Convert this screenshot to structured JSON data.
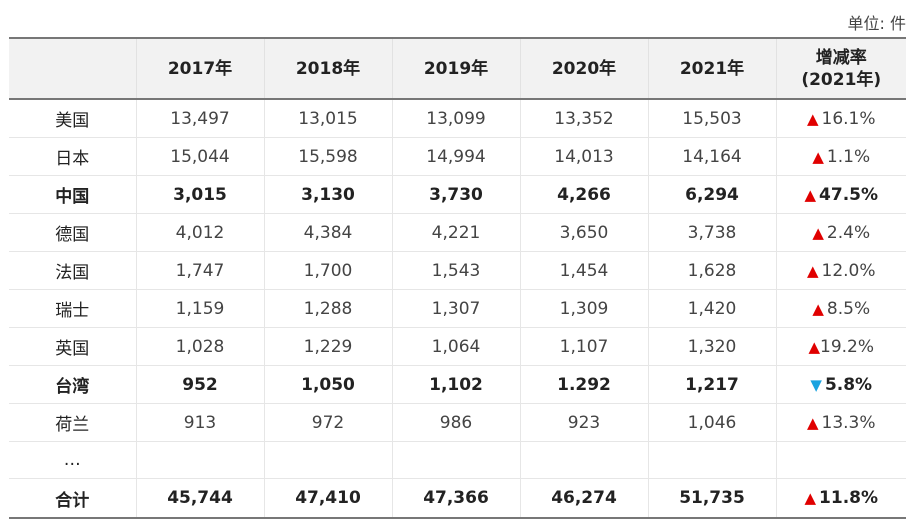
{
  "unit_label": "单位: 件",
  "header": {
    "blank": "",
    "years": [
      "2017年",
      "2018年",
      "2019年",
      "2020年",
      "2021年"
    ],
    "rate_line1": "增减率",
    "rate_line2": "(2021年)"
  },
  "rows": [
    {
      "name": "美国",
      "values": [
        "13,497",
        "13,015",
        "13,099",
        "13,352",
        "15,503"
      ],
      "dir": "up",
      "rate": "16.1%"
    },
    {
      "name": "日本",
      "values": [
        "15,044",
        "15,598",
        "14,994",
        "14,013",
        "14,164"
      ],
      "dir": "up",
      "rate": "1.1%"
    },
    {
      "name": "中国",
      "values": [
        "3,015",
        "3,130",
        "3,730",
        "4,266",
        "6,294"
      ],
      "dir": "up",
      "rate": "47.5%"
    },
    {
      "name": "德国",
      "values": [
        "4,012",
        "4,384",
        "4,221",
        "3,650",
        "3,738"
      ],
      "dir": "up",
      "rate": "2.4%"
    },
    {
      "name": "法国",
      "values": [
        "1,747",
        "1,700",
        "1,543",
        "1,454",
        "1,628"
      ],
      "dir": "up",
      "rate": "12.0%"
    },
    {
      "name": "瑞士",
      "values": [
        "1,159",
        "1,288",
        "1,307",
        "1,309",
        "1,420"
      ],
      "dir": "up",
      "rate": "8.5%"
    },
    {
      "name": "英国",
      "values": [
        "1,028",
        "1,229",
        "1,064",
        "1,107",
        "1,320"
      ],
      "dir": "up",
      "rate": "19.2%"
    },
    {
      "name": "台湾",
      "values": [
        "952",
        "1,050",
        "1,102",
        "1.292",
        "1,217"
      ],
      "dir": "down",
      "rate": "5.8%"
    },
    {
      "name": "荷兰",
      "values": [
        "913",
        "972",
        "986",
        "923",
        "1,046"
      ],
      "dir": "up",
      "rate": "13.3%"
    }
  ],
  "ellipsis": "…",
  "total": {
    "name": "合计",
    "values": [
      "45,744",
      "47,410",
      "47,366",
      "46,274",
      "51,735"
    ],
    "dir": "up",
    "rate": "11.8%"
  },
  "icons": {
    "up": "triangle-up-icon",
    "down": "triangle-down-icon"
  },
  "colors": {
    "up": "#e00000",
    "down": "#1aa3e0"
  }
}
